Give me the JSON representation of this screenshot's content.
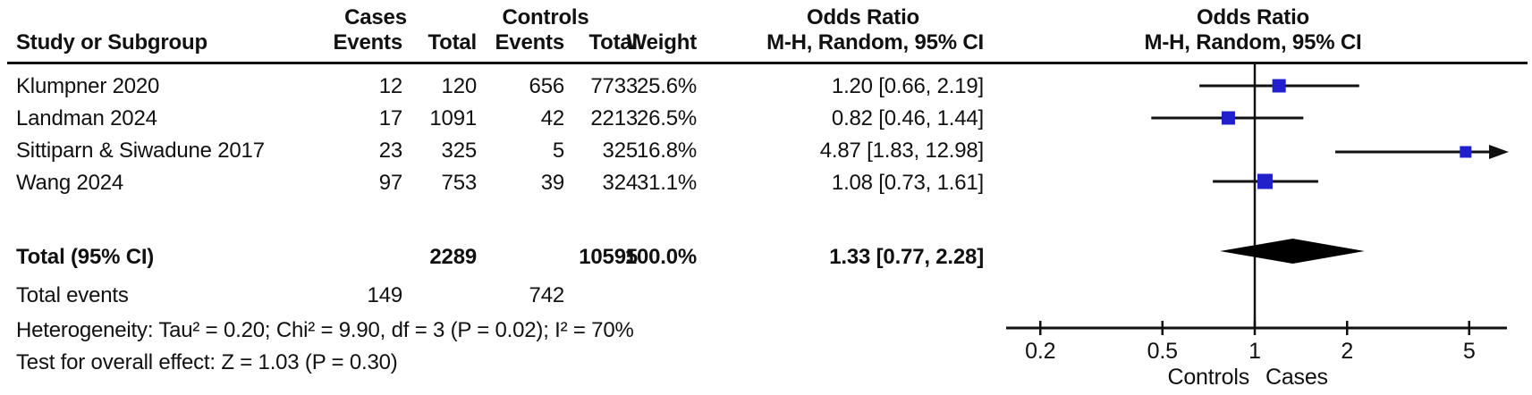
{
  "figure": {
    "left_panel": {
      "group_headers": {
        "cases": "Cases",
        "controls": "Controls",
        "odds_ratio": "Odds Ratio"
      },
      "column_headers": {
        "study": "Study or Subgroup",
        "cases_events": "Events",
        "cases_total": "Total",
        "controls_events": "Events",
        "controls_total": "Total",
        "weight": "Weight",
        "or_ci": "M-H, Random, 95% CI"
      },
      "rows": [
        {
          "study": "Klumpner 2020",
          "cases_events": "12",
          "cases_total": "120",
          "controls_events": "656",
          "controls_total": "7733",
          "weight": "25.6%",
          "or_ci": "1.20 [0.66, 2.19]"
        },
        {
          "study": "Landman 2024",
          "cases_events": "17",
          "cases_total": "1091",
          "controls_events": "42",
          "controls_total": "2213",
          "weight": "26.5%",
          "or_ci": "0.82 [0.46, 1.44]"
        },
        {
          "study": "Sittiparn & Siwadune 2017",
          "cases_events": "23",
          "cases_total": "325",
          "controls_events": "5",
          "controls_total": "325",
          "weight": "16.8%",
          "or_ci": "4.87 [1.83, 12.98]"
        },
        {
          "study": "Wang 2024",
          "cases_events": "97",
          "cases_total": "753",
          "controls_events": "39",
          "controls_total": "324",
          "weight": "31.1%",
          "or_ci": "1.08 [0.73, 1.61]"
        }
      ],
      "total_row": {
        "label": "Total (95% CI)",
        "cases_total": "2289",
        "controls_total": "10595",
        "weight": "100.0%",
        "or_ci": "1.33 [0.77, 2.28]"
      },
      "total_events_row": {
        "label": "Total events",
        "cases_events": "149",
        "controls_events": "742"
      },
      "heterogeneity_line": "Heterogeneity: Tau² = 0.20; Chi² = 9.90, df = 3 (P = 0.02); I² = 70%",
      "overall_effect_line": "Test for overall effect: Z = 1.03 (P = 0.30)"
    },
    "right_panel": {
      "header_line1": "Odds Ratio",
      "header_line2": "M-H, Random, 95% CI"
    }
  },
  "chart_data": {
    "type": "scatter",
    "subtype": "forest-plot",
    "title": "Odds Ratio",
    "effect_measure": "M-H, Random, 95% CI",
    "xscale": "log",
    "xticks": [
      0.2,
      0.5,
      1,
      2,
      5
    ],
    "null_line_x": 1,
    "xlabel_left": "Controls",
    "xlabel_right": "Cases",
    "marker_color": "#2020CC",
    "diamond_color": "#000000",
    "line_color": "#111111",
    "studies": [
      {
        "name": "Klumpner 2020",
        "or": 1.2,
        "ci_low": 0.66,
        "ci_high": 2.19,
        "weight_pct": 25.6
      },
      {
        "name": "Landman 2024",
        "or": 0.82,
        "ci_low": 0.46,
        "ci_high": 1.44,
        "weight_pct": 26.5
      },
      {
        "name": "Sittiparn & Siwadune 2017",
        "or": 4.87,
        "ci_low": 1.83,
        "ci_high": 12.98,
        "weight_pct": 16.8
      },
      {
        "name": "Wang 2024",
        "or": 1.08,
        "ci_low": 0.73,
        "ci_high": 1.61,
        "weight_pct": 31.1
      }
    ],
    "total": {
      "name": "Total (95% CI)",
      "or": 1.33,
      "ci_low": 0.77,
      "ci_high": 2.28,
      "weight_pct": 100.0
    }
  }
}
